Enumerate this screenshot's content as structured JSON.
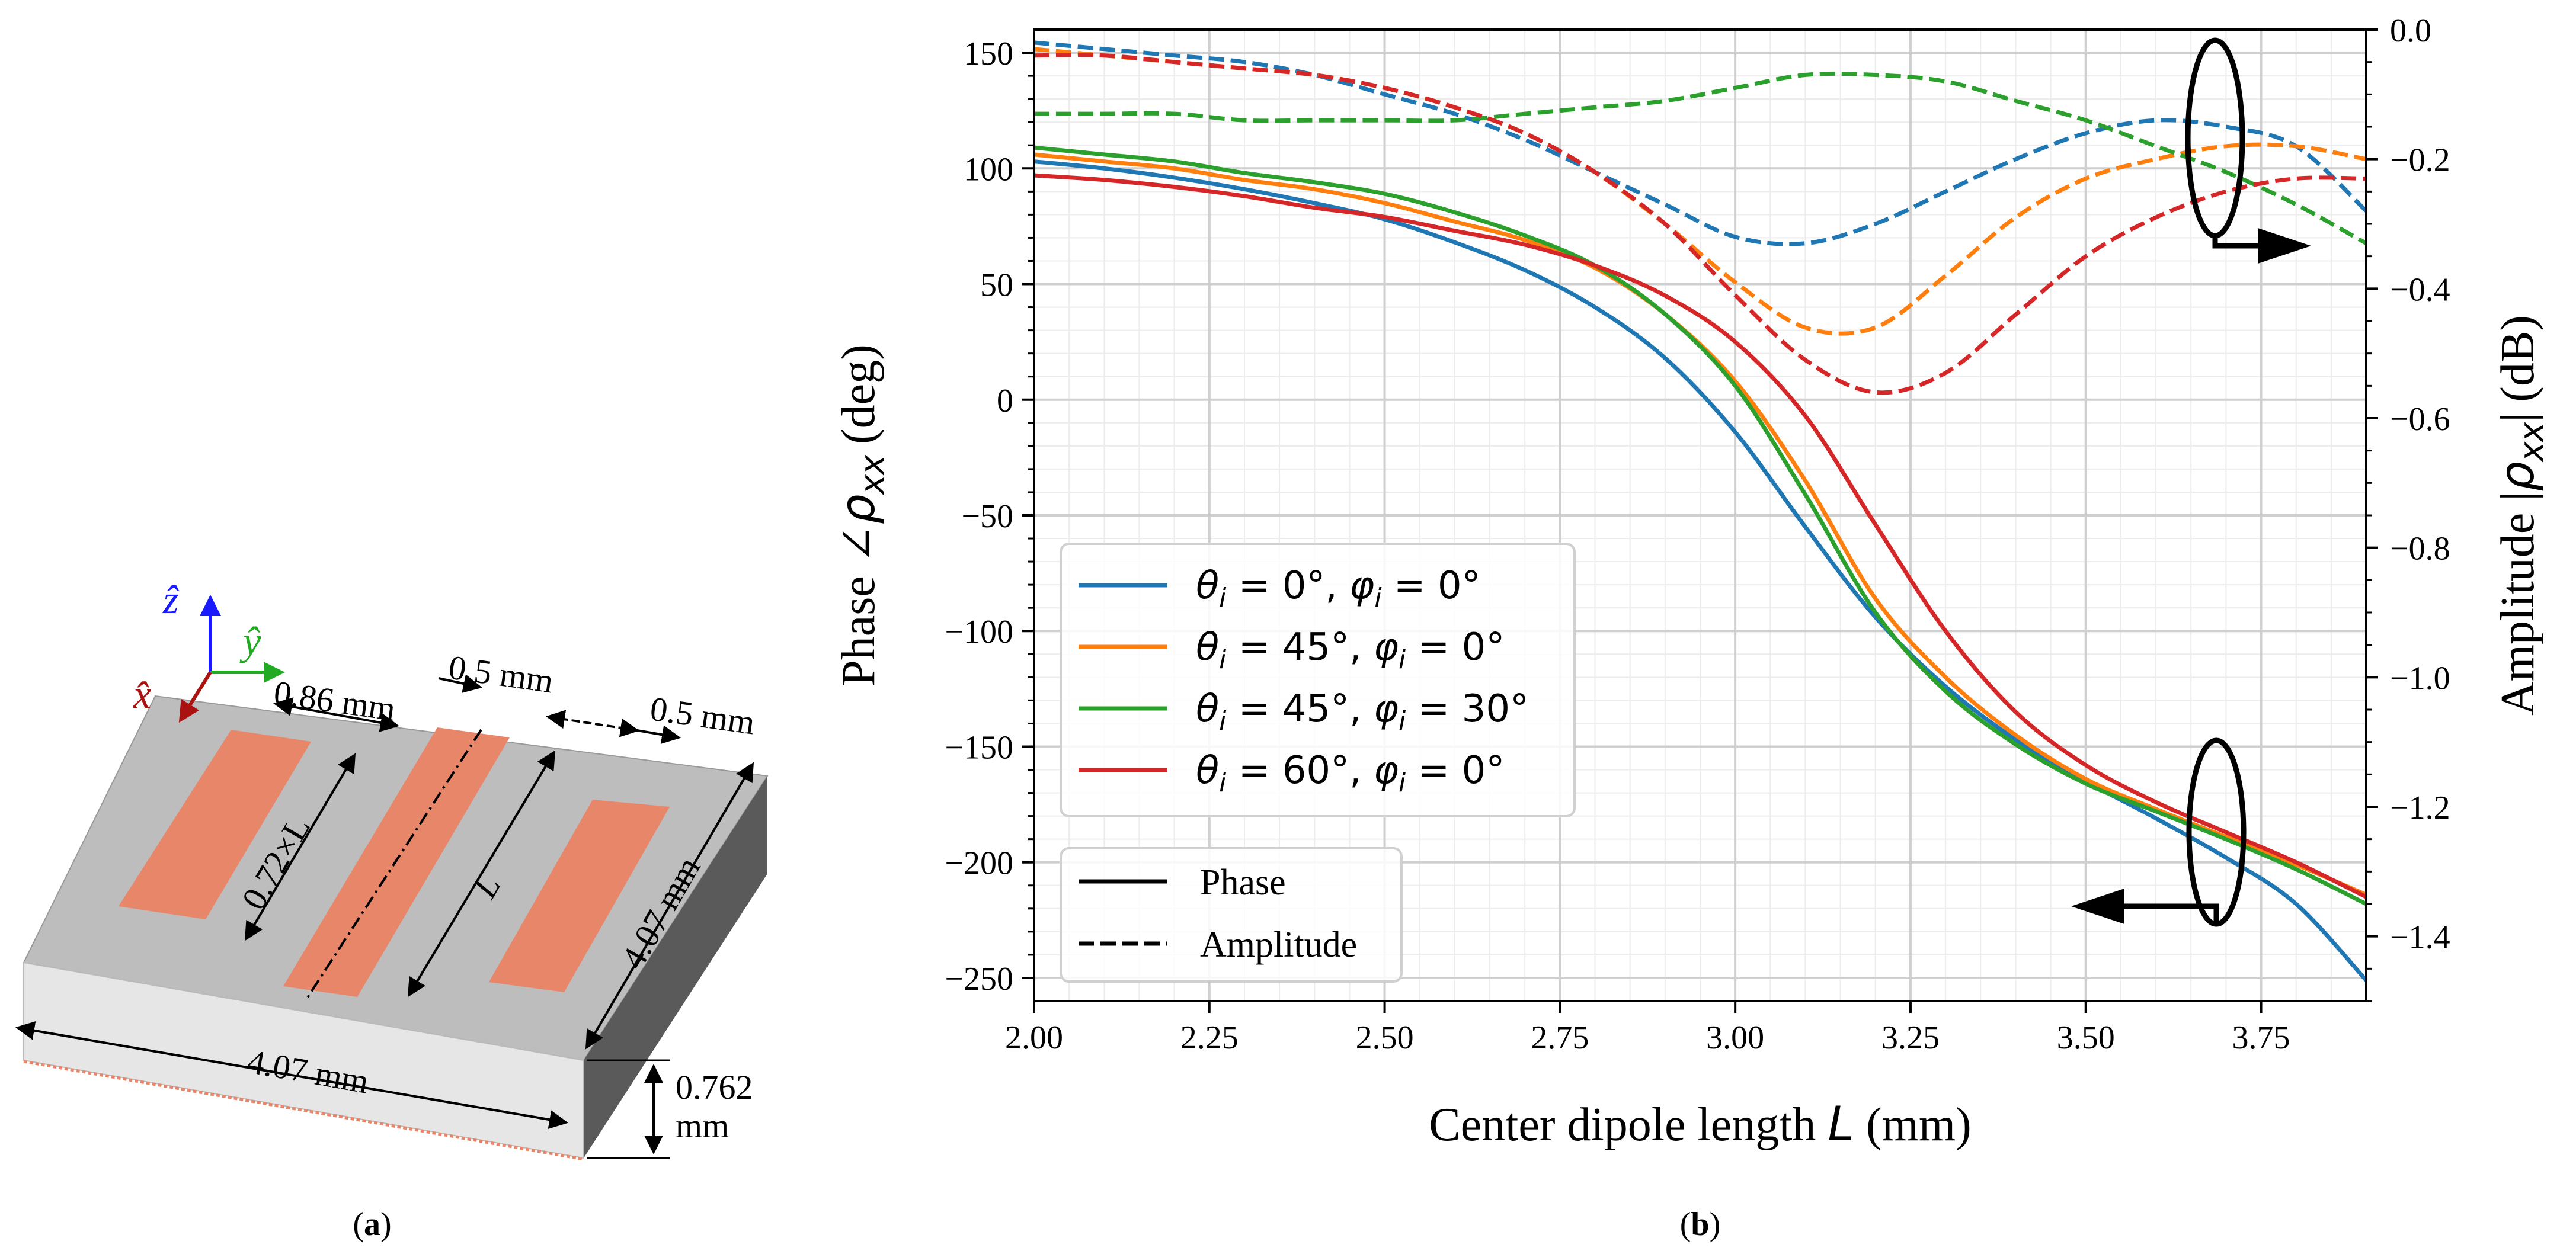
{
  "panel_a": {
    "caption": "(a)",
    "caption_letter": "a",
    "axes": {
      "z": "ẑ",
      "y": "ŷ",
      "x": "x̂"
    },
    "dims": {
      "gap1": "0.86 mm",
      "width_center": "0.5 mm",
      "width_right": "0.5 mm",
      "outer_len": "0.72×L",
      "center_len": "L",
      "depth": "4.07 mm",
      "front": "4.07 mm",
      "thick_value": "0.762",
      "thick_unit": "mm"
    },
    "colors": {
      "substrate_top": "#bdbdbd",
      "substrate_side": "#e6e6e6",
      "substrate_dark": "#5a5a5a",
      "dipole": "#e8866a",
      "z_axis": "#1a1aff",
      "y_axis": "#22aa22",
      "x_axis": "#aa1111"
    }
  },
  "panel_b": {
    "caption": "(b)",
    "caption_letter": "b"
  },
  "chart_data": {
    "type": "line",
    "xlabel": "Center dipole length",
    "xlabel_var": "L",
    "xlabel_unit": "(mm)",
    "ylabel_left": "Phase ∠ρxx (deg)",
    "ylabel_left_parts": {
      "prefix": "Phase",
      "angle": "∠",
      "rho": "ρ",
      "sub": "xx",
      "unit": "(deg)"
    },
    "ylabel_right": "Amplitude |ρxx| (dB)",
    "ylabel_right_parts": {
      "prefix": "Amplitude",
      "bar": "|",
      "rho": "ρ",
      "sub": "xx",
      "unit": "(dB)"
    },
    "xlim": [
      2.0,
      3.9
    ],
    "ylim_left": [
      -260,
      160
    ],
    "ylim_right": [
      -1.5,
      0.0
    ],
    "x_ticks": [
      "2.00",
      "2.25",
      "2.50",
      "2.75",
      "3.00",
      "3.25",
      "3.50",
      "3.75"
    ],
    "y_left_ticks": [
      "150",
      "100",
      "50",
      "0",
      "−50",
      "−100",
      "−150",
      "−200",
      "−250"
    ],
    "y_right_ticks": [
      "0.0",
      "−0.2",
      "−0.4",
      "−0.6",
      "−0.8",
      "−1.0",
      "−1.2",
      "−1.4"
    ],
    "grid": true,
    "x": [
      2.0,
      2.1,
      2.2,
      2.3,
      2.4,
      2.5,
      2.6,
      2.7,
      2.8,
      2.9,
      3.0,
      3.1,
      3.2,
      3.3,
      3.4,
      3.5,
      3.6,
      3.7,
      3.8,
      3.9
    ],
    "series": [
      {
        "name": "θi = 0°, φi = 0°",
        "color": "#1f77b4",
        "phase": [
          103,
          100,
          96,
          91,
          85,
          78,
          68,
          56,
          40,
          18,
          -14,
          -55,
          -94,
          -124,
          -147,
          -165,
          -181,
          -198,
          -218,
          -251
        ],
        "amplitude": [
          -0.02,
          -0.03,
          -0.04,
          -0.05,
          -0.07,
          -0.1,
          -0.13,
          -0.17,
          -0.22,
          -0.27,
          -0.32,
          -0.33,
          -0.3,
          -0.25,
          -0.2,
          -0.16,
          -0.14,
          -0.15,
          -0.18,
          -0.28
        ]
      },
      {
        "name": "θi = 45°, φi = 0°",
        "color": "#ff7f0e",
        "phase": [
          106,
          103,
          100,
          95,
          91,
          85,
          77,
          69,
          57,
          37,
          8,
          -35,
          -86,
          -120,
          -145,
          -164,
          -177,
          -189,
          -201,
          -214
        ],
        "amplitude": [
          -0.03,
          -0.04,
          -0.05,
          -0.06,
          -0.07,
          -0.09,
          -0.12,
          -0.16,
          -0.22,
          -0.3,
          -0.39,
          -0.46,
          -0.46,
          -0.38,
          -0.29,
          -0.23,
          -0.2,
          -0.18,
          -0.18,
          -0.2
        ]
      },
      {
        "name": "θi = 45°, φi = 30°",
        "color": "#2ca02c",
        "phase": [
          109,
          106,
          103,
          98,
          94,
          89,
          81,
          71,
          58,
          37,
          6,
          -41,
          -92,
          -126,
          -149,
          -166,
          -178,
          -190,
          -203,
          -218
        ],
        "amplitude": [
          -0.13,
          -0.13,
          -0.13,
          -0.14,
          -0.14,
          -0.14,
          -0.14,
          -0.13,
          -0.12,
          -0.11,
          -0.09,
          -0.07,
          -0.07,
          -0.08,
          -0.11,
          -0.14,
          -0.18,
          -0.22,
          -0.27,
          -0.33
        ]
      },
      {
        "name": "θi = 60°, φi = 0°",
        "color": "#d62728",
        "phase": [
          97,
          95,
          92,
          88,
          83,
          79,
          73,
          67,
          58,
          45,
          25,
          -7,
          -54,
          -100,
          -135,
          -158,
          -174,
          -187,
          -200,
          -215
        ],
        "amplitude": [
          -0.04,
          -0.04,
          -0.05,
          -0.06,
          -0.07,
          -0.09,
          -0.12,
          -0.16,
          -0.22,
          -0.3,
          -0.41,
          -0.51,
          -0.56,
          -0.53,
          -0.44,
          -0.35,
          -0.29,
          -0.25,
          -0.23,
          -0.23
        ]
      }
    ],
    "legend": {
      "entries": [
        {
          "theta": "θ",
          "sub": "i",
          "theta_val": " = 0°, ",
          "phi": "φ",
          "phi_val": " = 0°"
        },
        {
          "theta": "θ",
          "sub": "i",
          "theta_val": " = 45°, ",
          "phi": "φ",
          "phi_val": " = 0°"
        },
        {
          "theta": "θ",
          "sub": "i",
          "theta_val": " = 45°, ",
          "phi": "φ",
          "phi_val": " = 30°"
        },
        {
          "theta": "θ",
          "sub": "i",
          "theta_val": " = 60°, ",
          "phi": "φ",
          "phi_val": " = 0°"
        }
      ],
      "style_entries": [
        "Phase",
        "Amplitude"
      ],
      "placement": "center-left"
    }
  }
}
